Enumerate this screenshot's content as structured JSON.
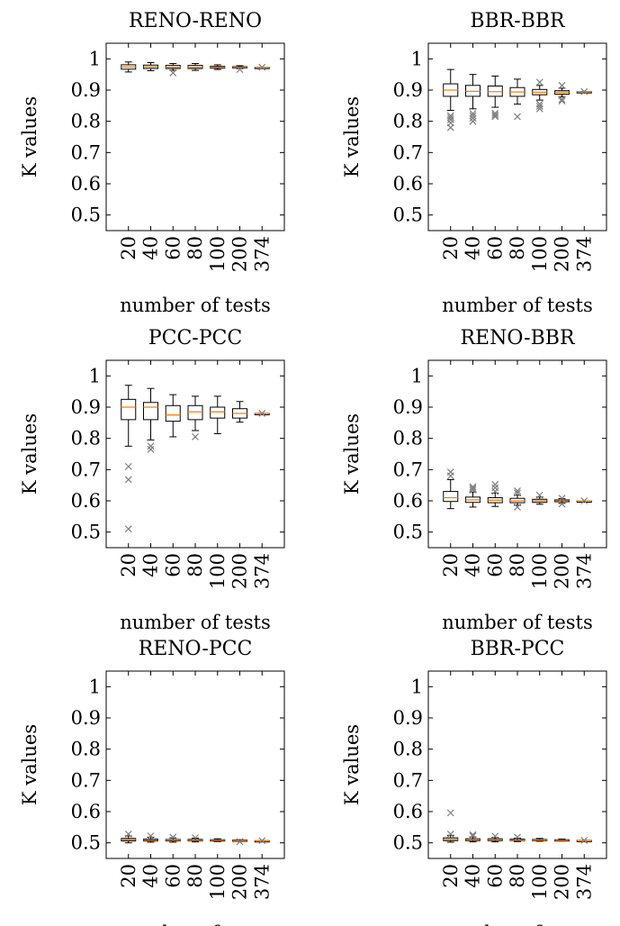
{
  "figure": {
    "colors": {
      "axis": "#000000",
      "median": "#ff7f0e",
      "outlier": "#7f7f7f",
      "box": "#000000"
    }
  },
  "chart_data": [
    {
      "type": "box",
      "title": "RENO-RENO",
      "xlabel": "number of tests",
      "ylabel": "K values",
      "ylim": [
        0.45,
        1.05
      ],
      "yticks": [
        "0.5",
        "0.6",
        "0.7",
        "0.8",
        "0.9",
        "1"
      ],
      "categories": [
        "20",
        "40",
        "60",
        "80",
        "100",
        "200",
        "374"
      ],
      "boxes": [
        {
          "whislo": 0.958,
          "q1": 0.967,
          "med": 0.974,
          "q3": 0.981,
          "whishi": 0.99,
          "fliers": []
        },
        {
          "whislo": 0.962,
          "q1": 0.969,
          "med": 0.974,
          "q3": 0.98,
          "whishi": 0.988,
          "fliers": []
        },
        {
          "whislo": 0.963,
          "q1": 0.969,
          "med": 0.973,
          "q3": 0.979,
          "whishi": 0.985,
          "fliers": [
            0.955
          ]
        },
        {
          "whislo": 0.963,
          "q1": 0.969,
          "med": 0.973,
          "q3": 0.979,
          "whishi": 0.985,
          "fliers": []
        },
        {
          "whislo": 0.966,
          "q1": 0.97,
          "med": 0.973,
          "q3": 0.976,
          "whishi": 0.981,
          "fliers": []
        },
        {
          "whislo": 0.969,
          "q1": 0.971,
          "med": 0.973,
          "q3": 0.975,
          "whishi": 0.978,
          "fliers": [
            0.966
          ]
        },
        {
          "whislo": 0.973,
          "q1": 0.973,
          "med": 0.973,
          "q3": 0.973,
          "whishi": 0.973,
          "fliers": [
            0.973
          ]
        }
      ]
    },
    {
      "type": "box",
      "title": "BBR-BBR",
      "xlabel": "number of tests",
      "ylabel": "K values",
      "ylim": [
        0.45,
        1.05
      ],
      "yticks": [
        "0.5",
        "0.6",
        "0.7",
        "0.8",
        "0.9",
        "1"
      ],
      "categories": [
        "20",
        "40",
        "60",
        "80",
        "100",
        "200",
        "374"
      ],
      "boxes": [
        {
          "whislo": 0.835,
          "q1": 0.88,
          "med": 0.9,
          "q3": 0.92,
          "whishi": 0.966,
          "fliers": [
            0.78,
            0.795,
            0.805,
            0.812,
            0.818
          ]
        },
        {
          "whislo": 0.84,
          "q1": 0.88,
          "med": 0.896,
          "q3": 0.915,
          "whishi": 0.95,
          "fliers": [
            0.8,
            0.81,
            0.818,
            0.825
          ]
        },
        {
          "whislo": 0.845,
          "q1": 0.88,
          "med": 0.895,
          "q3": 0.913,
          "whishi": 0.945,
          "fliers": [
            0.815,
            0.82,
            0.826
          ]
        },
        {
          "whislo": 0.855,
          "q1": 0.88,
          "med": 0.894,
          "q3": 0.908,
          "whishi": 0.935,
          "fliers": [
            0.815
          ]
        },
        {
          "whislo": 0.868,
          "q1": 0.885,
          "med": 0.893,
          "q3": 0.902,
          "whishi": 0.915,
          "fliers": [
            0.84,
            0.848,
            0.855,
            0.925
          ]
        },
        {
          "whislo": 0.878,
          "q1": 0.887,
          "med": 0.893,
          "q3": 0.898,
          "whishi": 0.906,
          "fliers": [
            0.865,
            0.87,
            0.915
          ]
        },
        {
          "whislo": 0.895,
          "q1": 0.895,
          "med": 0.895,
          "q3": 0.895,
          "whishi": 0.895,
          "fliers": [
            0.895
          ]
        }
      ]
    },
    {
      "type": "box",
      "title": "PCC-PCC",
      "xlabel": "number of tests",
      "ylabel": "K values",
      "ylim": [
        0.45,
        1.05
      ],
      "yticks": [
        "0.5",
        "0.6",
        "0.7",
        "0.8",
        "0.9",
        "1"
      ],
      "categories": [
        "20",
        "40",
        "60",
        "80",
        "100",
        "200",
        "374"
      ],
      "boxes": [
        {
          "whislo": 0.775,
          "q1": 0.86,
          "med": 0.9,
          "q3": 0.925,
          "whishi": 0.97,
          "fliers": [
            0.51,
            0.668,
            0.71
          ]
        },
        {
          "whislo": 0.795,
          "q1": 0.86,
          "med": 0.9,
          "q3": 0.915,
          "whishi": 0.96,
          "fliers": [
            0.765,
            0.775
          ]
        },
        {
          "whislo": 0.805,
          "q1": 0.855,
          "med": 0.875,
          "q3": 0.905,
          "whishi": 0.94,
          "fliers": []
        },
        {
          "whislo": 0.825,
          "q1": 0.86,
          "med": 0.885,
          "q3": 0.905,
          "whishi": 0.935,
          "fliers": [
            0.805
          ]
        },
        {
          "whislo": 0.815,
          "q1": 0.865,
          "med": 0.885,
          "q3": 0.9,
          "whishi": 0.935,
          "fliers": []
        },
        {
          "whislo": 0.852,
          "q1": 0.865,
          "med": 0.88,
          "q3": 0.895,
          "whishi": 0.918,
          "fliers": []
        },
        {
          "whislo": 0.88,
          "q1": 0.88,
          "med": 0.88,
          "q3": 0.88,
          "whishi": 0.88,
          "fliers": [
            0.88
          ]
        }
      ]
    },
    {
      "type": "box",
      "title": "RENO-BBR",
      "xlabel": "number of tests",
      "ylabel": "K values",
      "ylim": [
        0.45,
        1.05
      ],
      "yticks": [
        "0.5",
        "0.6",
        "0.7",
        "0.8",
        "0.9",
        "1"
      ],
      "categories": [
        "20",
        "40",
        "60",
        "80",
        "100",
        "200",
        "374"
      ],
      "boxes": [
        {
          "whislo": 0.575,
          "q1": 0.598,
          "med": 0.61,
          "q3": 0.63,
          "whishi": 0.668,
          "fliers": [
            0.68,
            0.692
          ]
        },
        {
          "whislo": 0.58,
          "q1": 0.595,
          "med": 0.603,
          "q3": 0.612,
          "whishi": 0.628,
          "fliers": [
            0.635,
            0.64,
            0.645
          ]
        },
        {
          "whislo": 0.582,
          "q1": 0.594,
          "med": 0.602,
          "q3": 0.61,
          "whishi": 0.625,
          "fliers": [
            0.63,
            0.642,
            0.652
          ]
        },
        {
          "whislo": 0.586,
          "q1": 0.594,
          "med": 0.6,
          "q3": 0.608,
          "whishi": 0.618,
          "fliers": [
            0.58,
            0.625,
            0.632
          ]
        },
        {
          "whislo": 0.589,
          "q1": 0.595,
          "med": 0.6,
          "q3": 0.605,
          "whishi": 0.612,
          "fliers": [
            0.618
          ]
        },
        {
          "whislo": 0.592,
          "q1": 0.597,
          "med": 0.6,
          "q3": 0.603,
          "whishi": 0.607,
          "fliers": [
            0.59,
            0.608
          ]
        },
        {
          "whislo": 0.6,
          "q1": 0.6,
          "med": 0.6,
          "q3": 0.6,
          "whishi": 0.6,
          "fliers": [
            0.6
          ]
        }
      ]
    },
    {
      "type": "box",
      "title": "RENO-PCC",
      "xlabel": "number of tests",
      "ylabel": "K values",
      "ylim": [
        0.45,
        1.05
      ],
      "yticks": [
        "0.5",
        "0.6",
        "0.7",
        "0.8",
        "0.9",
        "1"
      ],
      "categories": [
        "20",
        "40",
        "60",
        "80",
        "100",
        "200",
        "374"
      ],
      "boxes": [
        {
          "whislo": 0.5,
          "q1": 0.506,
          "med": 0.51,
          "q3": 0.514,
          "whishi": 0.522,
          "fliers": [
            0.528
          ]
        },
        {
          "whislo": 0.502,
          "q1": 0.506,
          "med": 0.509,
          "q3": 0.512,
          "whishi": 0.518,
          "fliers": [
            0.522
          ]
        },
        {
          "whislo": 0.502,
          "q1": 0.506,
          "med": 0.509,
          "q3": 0.511,
          "whishi": 0.516,
          "fliers": [
            0.518
          ]
        },
        {
          "whislo": 0.503,
          "q1": 0.506,
          "med": 0.508,
          "q3": 0.511,
          "whishi": 0.515,
          "fliers": [
            0.516
          ]
        },
        {
          "whislo": 0.504,
          "q1": 0.506,
          "med": 0.508,
          "q3": 0.51,
          "whishi": 0.513,
          "fliers": []
        },
        {
          "whislo": 0.505,
          "q1": 0.506,
          "med": 0.507,
          "q3": 0.509,
          "whishi": 0.51,
          "fliers": [
            0.504
          ]
        },
        {
          "whislo": 0.507,
          "q1": 0.507,
          "med": 0.507,
          "q3": 0.507,
          "whishi": 0.507,
          "fliers": [
            0.507
          ]
        }
      ]
    },
    {
      "type": "box",
      "title": "BBR-PCC",
      "xlabel": "number of tests",
      "ylabel": "K values",
      "ylim": [
        0.45,
        1.05
      ],
      "yticks": [
        "0.5",
        "0.6",
        "0.7",
        "0.8",
        "0.9",
        "1"
      ],
      "categories": [
        "20",
        "40",
        "60",
        "80",
        "100",
        "200",
        "374"
      ],
      "boxes": [
        {
          "whislo": 0.502,
          "q1": 0.507,
          "med": 0.511,
          "q3": 0.516,
          "whishi": 0.524,
          "fliers": [
            0.528,
            0.596
          ]
        },
        {
          "whislo": 0.503,
          "q1": 0.507,
          "med": 0.51,
          "q3": 0.513,
          "whishi": 0.519,
          "fliers": [
            0.522,
            0.526
          ]
        },
        {
          "whislo": 0.503,
          "q1": 0.507,
          "med": 0.51,
          "q3": 0.513,
          "whishi": 0.517,
          "fliers": [
            0.521
          ]
        },
        {
          "whislo": 0.504,
          "q1": 0.507,
          "med": 0.509,
          "q3": 0.512,
          "whishi": 0.515,
          "fliers": [
            0.518
          ]
        },
        {
          "whislo": 0.505,
          "q1": 0.507,
          "med": 0.509,
          "q3": 0.511,
          "whishi": 0.514,
          "fliers": []
        },
        {
          "whislo": 0.506,
          "q1": 0.507,
          "med": 0.508,
          "q3": 0.51,
          "whishi": 0.512,
          "fliers": []
        },
        {
          "whislo": 0.508,
          "q1": 0.508,
          "med": 0.508,
          "q3": 0.508,
          "whishi": 0.508,
          "fliers": [
            0.508
          ]
        }
      ]
    }
  ]
}
